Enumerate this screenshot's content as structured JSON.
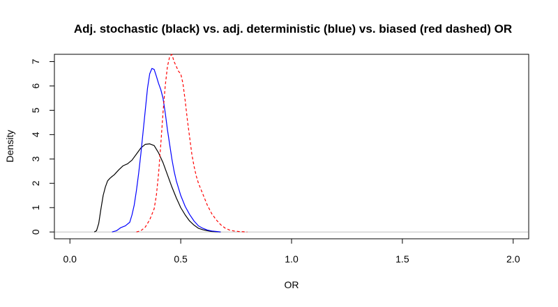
{
  "chart_data": {
    "type": "line",
    "title": "Adj. stochastic (black) vs. adj. deterministic (blue) vs. biased (red dashed) OR",
    "xlabel": "OR",
    "ylabel": "Density",
    "xlim": [
      -0.07,
      2.07
    ],
    "ylim": [
      -0.28,
      7.3
    ],
    "x_ticks": [
      0.0,
      0.5,
      1.0,
      1.5,
      2.0
    ],
    "x_tick_labels": [
      "0.0",
      "0.5",
      "1.0",
      "1.5",
      "2.0"
    ],
    "y_ticks": [
      0,
      1,
      2,
      3,
      4,
      5,
      6,
      7
    ],
    "y_tick_labels": [
      "0",
      "1",
      "2",
      "3",
      "4",
      "5",
      "6",
      "7"
    ],
    "grid": false,
    "legend": "none",
    "baseline": {
      "y": 0,
      "color": "#bebebe"
    },
    "series": [
      {
        "color": "#000000",
        "style": "solid",
        "points": [
          [
            0.11,
            0.0
          ],
          [
            0.12,
            0.05
          ],
          [
            0.13,
            0.35
          ],
          [
            0.14,
            0.95
          ],
          [
            0.15,
            1.5
          ],
          [
            0.16,
            1.85
          ],
          [
            0.17,
            2.1
          ],
          [
            0.18,
            2.2
          ],
          [
            0.19,
            2.28
          ],
          [
            0.2,
            2.35
          ],
          [
            0.22,
            2.55
          ],
          [
            0.24,
            2.72
          ],
          [
            0.26,
            2.8
          ],
          [
            0.28,
            2.95
          ],
          [
            0.3,
            3.2
          ],
          [
            0.32,
            3.45
          ],
          [
            0.34,
            3.6
          ],
          [
            0.36,
            3.62
          ],
          [
            0.38,
            3.55
          ],
          [
            0.4,
            3.25
          ],
          [
            0.42,
            2.85
          ],
          [
            0.44,
            2.35
          ],
          [
            0.46,
            1.85
          ],
          [
            0.48,
            1.4
          ],
          [
            0.5,
            1.0
          ],
          [
            0.52,
            0.7
          ],
          [
            0.54,
            0.45
          ],
          [
            0.56,
            0.28
          ],
          [
            0.58,
            0.15
          ],
          [
            0.6,
            0.09
          ],
          [
            0.62,
            0.05
          ],
          [
            0.64,
            0.02
          ],
          [
            0.66,
            0.01
          ],
          [
            0.68,
            0.0
          ]
        ]
      },
      {
        "color": "#0000ff",
        "style": "solid",
        "points": [
          [
            0.19,
            0.0
          ],
          [
            0.21,
            0.05
          ],
          [
            0.23,
            0.18
          ],
          [
            0.25,
            0.25
          ],
          [
            0.27,
            0.4
          ],
          [
            0.28,
            0.7
          ],
          [
            0.29,
            1.1
          ],
          [
            0.3,
            1.7
          ],
          [
            0.31,
            2.4
          ],
          [
            0.32,
            3.2
          ],
          [
            0.33,
            4.1
          ],
          [
            0.34,
            5.0
          ],
          [
            0.35,
            5.9
          ],
          [
            0.36,
            6.5
          ],
          [
            0.37,
            6.72
          ],
          [
            0.38,
            6.68
          ],
          [
            0.39,
            6.4
          ],
          [
            0.4,
            6.1
          ],
          [
            0.41,
            5.85
          ],
          [
            0.42,
            5.5
          ],
          [
            0.43,
            4.9
          ],
          [
            0.44,
            4.2
          ],
          [
            0.45,
            3.6
          ],
          [
            0.46,
            3.0
          ],
          [
            0.47,
            2.5
          ],
          [
            0.48,
            2.1
          ],
          [
            0.5,
            1.5
          ],
          [
            0.52,
            1.05
          ],
          [
            0.54,
            0.72
          ],
          [
            0.56,
            0.45
          ],
          [
            0.58,
            0.25
          ],
          [
            0.6,
            0.15
          ],
          [
            0.62,
            0.08
          ],
          [
            0.64,
            0.04
          ],
          [
            0.66,
            0.02
          ],
          [
            0.68,
            0.0
          ]
        ]
      },
      {
        "color": "#ff0000",
        "style": "dashed",
        "points": [
          [
            0.3,
            0.0
          ],
          [
            0.32,
            0.05
          ],
          [
            0.34,
            0.2
          ],
          [
            0.36,
            0.5
          ],
          [
            0.38,
            0.95
          ],
          [
            0.39,
            1.5
          ],
          [
            0.4,
            2.4
          ],
          [
            0.41,
            3.6
          ],
          [
            0.42,
            4.9
          ],
          [
            0.43,
            6.0
          ],
          [
            0.44,
            6.8
          ],
          [
            0.45,
            7.2
          ],
          [
            0.46,
            7.3
          ],
          [
            0.47,
            7.0
          ],
          [
            0.48,
            6.8
          ],
          [
            0.49,
            6.6
          ],
          [
            0.5,
            6.5
          ],
          [
            0.51,
            6.1
          ],
          [
            0.52,
            5.4
          ],
          [
            0.53,
            4.6
          ],
          [
            0.54,
            3.9
          ],
          [
            0.55,
            3.2
          ],
          [
            0.56,
            2.7
          ],
          [
            0.57,
            2.3
          ],
          [
            0.58,
            2.0
          ],
          [
            0.6,
            1.55
          ],
          [
            0.62,
            1.1
          ],
          [
            0.64,
            0.75
          ],
          [
            0.66,
            0.5
          ],
          [
            0.68,
            0.3
          ],
          [
            0.7,
            0.16
          ],
          [
            0.72,
            0.08
          ],
          [
            0.74,
            0.04
          ],
          [
            0.76,
            0.02
          ],
          [
            0.8,
            0.0
          ]
        ]
      }
    ]
  }
}
